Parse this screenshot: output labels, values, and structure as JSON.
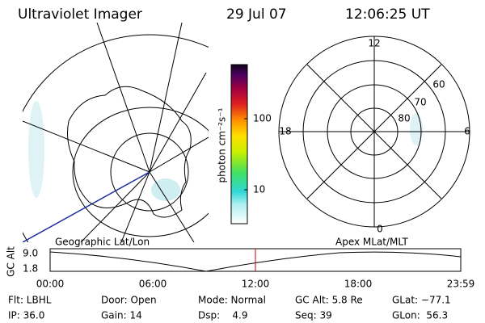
{
  "header": {
    "title": "Ultraviolet Imager",
    "date": "29 Jul 07",
    "time": "12:06:25 UT"
  },
  "colorbar": {
    "label": "photon cm⁻²s⁻¹",
    "ticks": [
      "100",
      "10"
    ]
  },
  "polar": {
    "mlt_labels": [
      "12",
      "6",
      "0",
      "18"
    ],
    "mlat_labels": [
      "60",
      "70",
      "80"
    ]
  },
  "altitude_plot": {
    "ylabel": "GC Alt",
    "yticks": [
      "9.0",
      "1.8"
    ],
    "xticks": [
      "00:00",
      "06:00",
      "12:00",
      "18:00",
      "23:59"
    ],
    "left_label": "Geographic Lat/Lon",
    "right_label": "Apex MLat/MLT"
  },
  "status": {
    "rows": [
      [
        "Flt: LBHL",
        "Door: Open",
        "Mode: Normal",
        "GC Alt: 5.8 Re",
        "GLat: −77.1"
      ],
      [
        "IP: 36.0",
        "Gain: 14",
        "Dsp:    4.9",
        "Seq: 39",
        "GLon:  56.3"
      ]
    ]
  }
}
